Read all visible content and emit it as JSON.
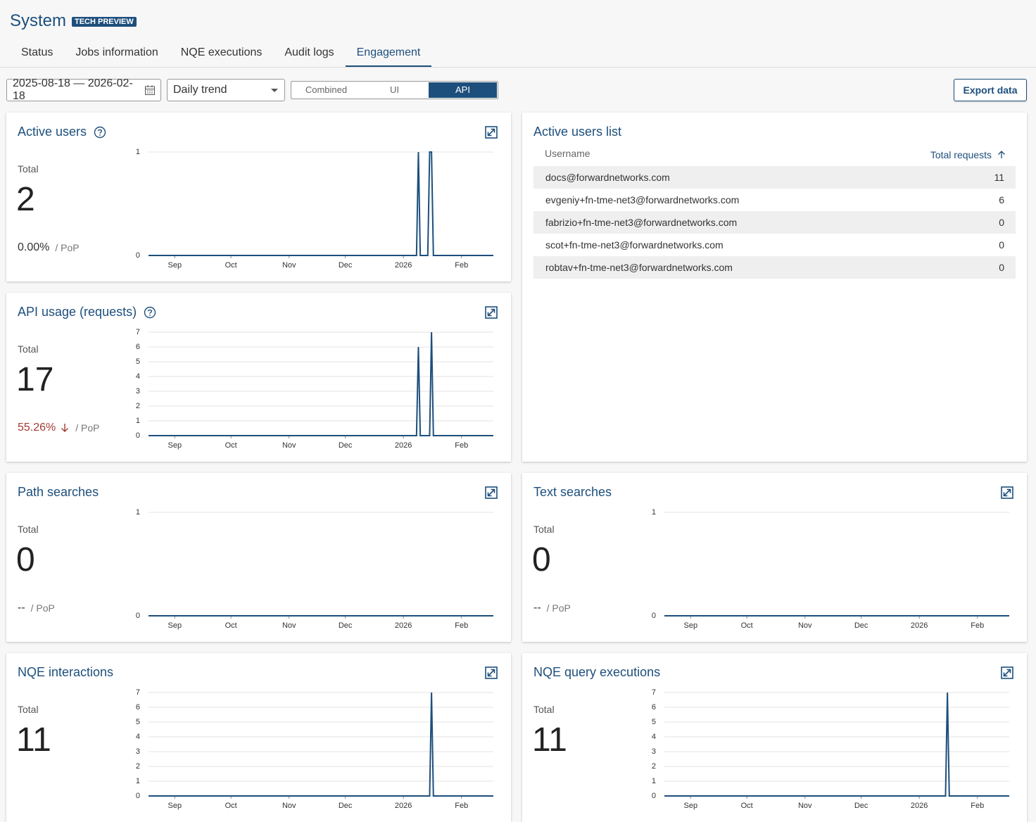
{
  "header": {
    "title": "System",
    "badge": "TECH PREVIEW"
  },
  "tabs": {
    "items": [
      "Status",
      "Jobs information",
      "NQE executions",
      "Audit logs",
      "Engagement"
    ],
    "active": 4
  },
  "toolbar": {
    "date_range": "2025-08-18 — 2026-02-18",
    "trend": "Daily trend",
    "view_options": [
      "Combined",
      "UI",
      "API"
    ],
    "selected_view": 2,
    "export": "Export data"
  },
  "cards": [
    {
      "title": "Active users",
      "help": true,
      "total_label": "Total",
      "total": 2,
      "pop": "0.00%",
      "pop_label": "/ PoP",
      "chart": {
        "type": "line",
        "color": "#1d4f7c",
        "xlim": [
          0,
          184
        ],
        "xticks": [
          {
            "value": 14,
            "label": "Sep"
          },
          {
            "value": 44,
            "label": "Oct"
          },
          {
            "value": 75,
            "label": "Nov"
          },
          {
            "value": 105,
            "label": "Dec"
          },
          {
            "value": 136,
            "label": "2026"
          },
          {
            "value": 167,
            "label": "Feb"
          }
        ],
        "ylim": [
          0,
          1
        ],
        "yticks": [
          0,
          1
        ],
        "grid": true,
        "x": [
          0,
          143,
          144,
          145,
          149,
          150,
          151,
          152,
          184
        ],
        "values": [
          0,
          0,
          1,
          0,
          0,
          1,
          1,
          0,
          0
        ]
      }
    },
    {
      "title": "API usage (requests)",
      "help": true,
      "total_label": "Total",
      "total": 17,
      "pop": "55.26%",
      "pop_trend": "down",
      "pop_label": "/ PoP",
      "chart": {
        "type": "line",
        "color": "#1d4f7c",
        "xlim": [
          0,
          184
        ],
        "xticks": [
          {
            "value": 14,
            "label": "Sep"
          },
          {
            "value": 44,
            "label": "Oct"
          },
          {
            "value": 75,
            "label": "Nov"
          },
          {
            "value": 105,
            "label": "Dec"
          },
          {
            "value": 136,
            "label": "2026"
          },
          {
            "value": 167,
            "label": "Feb"
          }
        ],
        "ylim": [
          0,
          7
        ],
        "yticks": [
          0,
          1,
          2,
          3,
          4,
          5,
          6,
          7
        ],
        "grid": true,
        "x": [
          0,
          143,
          144,
          145,
          150,
          151,
          152,
          184
        ],
        "values": [
          0,
          0,
          6,
          0,
          0,
          7,
          0,
          0
        ]
      }
    },
    {
      "title": "Path searches",
      "help": false,
      "total_label": "Total",
      "total": 0,
      "pop": "--",
      "pop_label": "/ PoP",
      "chart": {
        "type": "line",
        "color": "#1d4f7c",
        "xlim": [
          0,
          184
        ],
        "xticks": [
          {
            "value": 14,
            "label": "Sep"
          },
          {
            "value": 44,
            "label": "Oct"
          },
          {
            "value": 75,
            "label": "Nov"
          },
          {
            "value": 105,
            "label": "Dec"
          },
          {
            "value": 136,
            "label": "2026"
          },
          {
            "value": 167,
            "label": "Feb"
          }
        ],
        "ylim": [
          0,
          1
        ],
        "yticks": [
          0,
          1
        ],
        "grid": true,
        "x": [
          0,
          184
        ],
        "values": [
          0,
          0
        ]
      }
    },
    {
      "title": "Text searches",
      "help": false,
      "total_label": "Total",
      "total": 0,
      "pop": "--",
      "pop_label": "/ PoP",
      "chart": {
        "type": "line",
        "color": "#1d4f7c",
        "xlim": [
          0,
          184
        ],
        "xticks": [
          {
            "value": 14,
            "label": "Sep"
          },
          {
            "value": 44,
            "label": "Oct"
          },
          {
            "value": 75,
            "label": "Nov"
          },
          {
            "value": 105,
            "label": "Dec"
          },
          {
            "value": 136,
            "label": "2026"
          },
          {
            "value": 167,
            "label": "Feb"
          }
        ],
        "ylim": [
          0,
          1
        ],
        "yticks": [
          0,
          1
        ],
        "grid": true,
        "x": [
          0,
          184
        ],
        "values": [
          0,
          0
        ]
      }
    },
    {
      "title": "NQE interactions",
      "help": false,
      "total_label": "Total",
      "total": 11,
      "chart": {
        "type": "line",
        "color": "#1d4f7c",
        "xlim": [
          0,
          184
        ],
        "xticks": [
          {
            "value": 14,
            "label": "Sep"
          },
          {
            "value": 44,
            "label": "Oct"
          },
          {
            "value": 75,
            "label": "Nov"
          },
          {
            "value": 105,
            "label": "Dec"
          },
          {
            "value": 136,
            "label": "2026"
          },
          {
            "value": 167,
            "label": "Feb"
          }
        ],
        "ylim": [
          0,
          7
        ],
        "yticks": [
          0,
          1,
          2,
          3,
          4,
          5,
          6,
          7
        ],
        "grid": true,
        "x": [
          0,
          150,
          151,
          152,
          184
        ],
        "values": [
          0,
          0,
          7,
          0,
          0
        ]
      }
    },
    {
      "title": "NQE query executions",
      "help": false,
      "total_label": "Total",
      "total": 11,
      "chart": {
        "type": "line",
        "color": "#1d4f7c",
        "xlim": [
          0,
          184
        ],
        "xticks": [
          {
            "value": 14,
            "label": "Sep"
          },
          {
            "value": 44,
            "label": "Oct"
          },
          {
            "value": 75,
            "label": "Nov"
          },
          {
            "value": 105,
            "label": "Dec"
          },
          {
            "value": 136,
            "label": "2026"
          },
          {
            "value": 167,
            "label": "Feb"
          }
        ],
        "ylim": [
          0,
          7
        ],
        "yticks": [
          0,
          1,
          2,
          3,
          4,
          5,
          6,
          7
        ],
        "grid": true,
        "x": [
          0,
          150,
          151,
          152,
          184
        ],
        "values": [
          0,
          0,
          7,
          0,
          0
        ]
      }
    }
  ],
  "users_list": {
    "title": "Active users list",
    "columns": [
      "Username",
      "Total requests"
    ],
    "rows": [
      [
        "docs@forwardnetworks.com",
        11
      ],
      [
        "evgeniy+fn-tme-net3@forwardnetworks.com",
        6
      ],
      [
        "fabrizio+fn-tme-net3@forwardnetworks.com",
        0
      ],
      [
        "scot+fn-tme-net3@forwardnetworks.com",
        0
      ],
      [
        "robtav+fn-tme-net3@forwardnetworks.com",
        0
      ]
    ]
  }
}
